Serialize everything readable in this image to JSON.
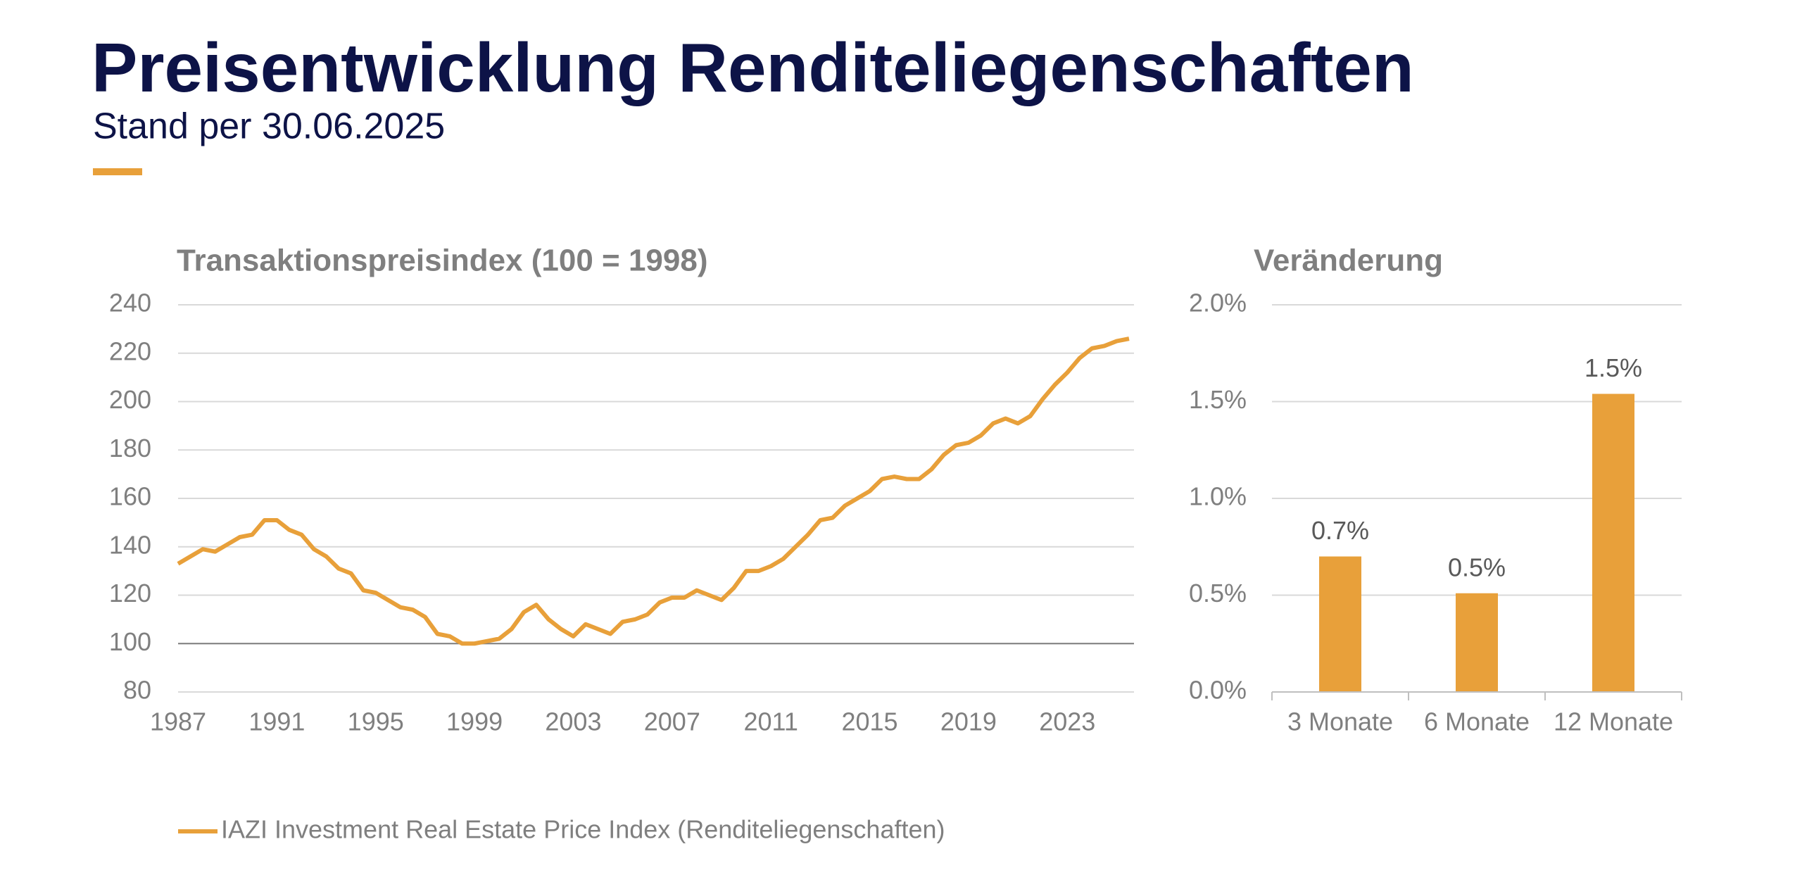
{
  "header": {
    "title": "Preisentwicklung Renditeliegenschaften",
    "subtitle": "Stand per 30.06.2025"
  },
  "chart_data": [
    {
      "type": "line",
      "title": "Transaktionspreisindex (100 = 1998)",
      "x": [
        1987,
        1987.5,
        1988,
        1988.5,
        1989,
        1989.5,
        1990,
        1990.5,
        1991,
        1991.5,
        1992,
        1992.5,
        1993,
        1993.5,
        1994,
        1994.5,
        1995,
        1995.5,
        1996,
        1996.5,
        1997,
        1997.5,
        1998,
        1998.5,
        1999,
        1999.5,
        2000,
        2000.5,
        2001,
        2001.5,
        2002,
        2002.5,
        2003,
        2003.5,
        2004,
        2004.5,
        2005,
        2005.5,
        2006,
        2006.5,
        2007,
        2007.5,
        2008,
        2008.5,
        2009,
        2009.5,
        2010,
        2010.5,
        2011,
        2011.5,
        2012,
        2012.5,
        2013,
        2013.5,
        2014,
        2014.5,
        2015,
        2015.5,
        2016,
        2016.5,
        2017,
        2017.5,
        2018,
        2018.5,
        2019,
        2019.5,
        2020,
        2020.5,
        2021,
        2021.5,
        2022,
        2022.5,
        2023,
        2023.5,
        2024,
        2024.5,
        2025,
        2025.5
      ],
      "series": [
        {
          "name": "IAZI Investment Real Estate Price Index (Renditeliegenschaften)",
          "color": "#e8a03a",
          "values": [
            133,
            136,
            139,
            138,
            141,
            144,
            145,
            151,
            151,
            147,
            145,
            139,
            136,
            131,
            129,
            122,
            121,
            118,
            115,
            114,
            111,
            104,
            103,
            100,
            100,
            101,
            102,
            106,
            113,
            116,
            110,
            106,
            103,
            108,
            106,
            104,
            109,
            110,
            112,
            117,
            119,
            119,
            122,
            120,
            118,
            123,
            130,
            130,
            132,
            135,
            140,
            145,
            151,
            152,
            157,
            160,
            163,
            168,
            169,
            168,
            168,
            172,
            178,
            182,
            183,
            186,
            191,
            193,
            191,
            194,
            201,
            207,
            212,
            218,
            222,
            223,
            225,
            226
          ]
        }
      ],
      "xlim": [
        1987,
        2025.7
      ],
      "xticks": [
        1987,
        1991,
        1995,
        1999,
        2003,
        2007,
        2011,
        2015,
        2019,
        2023
      ],
      "ylim": [
        80,
        240
      ],
      "yticks": [
        80,
        100,
        120,
        140,
        160,
        180,
        200,
        220,
        240
      ],
      "grid": true,
      "legend": "bottom-left"
    },
    {
      "type": "bar",
      "title": "Veränderung",
      "categories": [
        "3 Monate",
        "6 Monate",
        "12 Monate"
      ],
      "values": [
        0.7,
        0.51,
        1.54
      ],
      "value_labels": [
        "0.7%",
        "0.5%",
        "1.5%"
      ],
      "color": "#e8a03a",
      "ylim": [
        0,
        2
      ],
      "yticks": [
        {
          "value": 0,
          "label": "0.0%"
        },
        {
          "value": 0.5,
          "label": "0.5%"
        },
        {
          "value": 1,
          "label": "1.0%"
        },
        {
          "value": 1.5,
          "label": "1.5%"
        },
        {
          "value": 2,
          "label": "2.0%"
        }
      ],
      "grid": true
    }
  ]
}
